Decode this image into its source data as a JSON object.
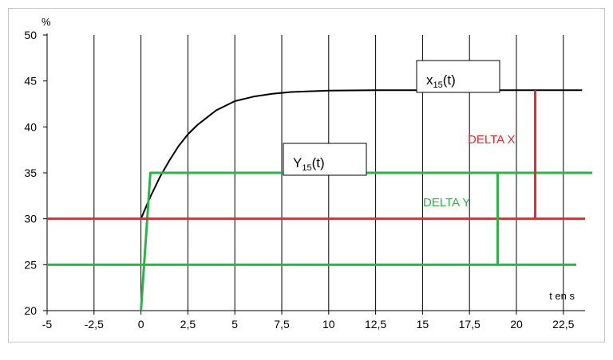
{
  "chart_data": {
    "type": "line",
    "title": "",
    "xlabel": "t en s",
    "ylabel": "%",
    "xlim": [
      -5,
      23.5
    ],
    "ylim": [
      20,
      50
    ],
    "x_ticks": [
      "-5",
      "-2,5",
      "0",
      "2,5",
      "5",
      "7,5",
      "10",
      "12,5",
      "15",
      "17,5",
      "20",
      "22,5"
    ],
    "y_ticks": [
      "20",
      "25",
      "30",
      "35",
      "40",
      "45",
      "50"
    ],
    "grid": "vertical",
    "series": [
      {
        "name": "x15(t)",
        "color": "#000000",
        "points": [
          [
            0,
            30
          ],
          [
            0.5,
            32.4
          ],
          [
            1,
            34.5
          ],
          [
            1.5,
            36.3
          ],
          [
            2,
            37.9
          ],
          [
            2.5,
            39.2
          ],
          [
            3,
            40.2
          ],
          [
            4,
            41.8
          ],
          [
            5,
            42.8
          ],
          [
            6,
            43.3
          ],
          [
            7,
            43.6
          ],
          [
            8,
            43.8
          ],
          [
            10,
            43.95
          ],
          [
            12.5,
            44
          ],
          [
            15,
            44
          ],
          [
            17.5,
            44
          ],
          [
            20,
            44
          ],
          [
            23.5,
            44
          ]
        ]
      },
      {
        "name": "Y15(t)",
        "color": "#2db34a",
        "points": [
          [
            0,
            20
          ],
          [
            0.5,
            35
          ],
          [
            23.5,
            35
          ]
        ]
      }
    ],
    "reference_lines": [
      {
        "y": 30,
        "color": "#e52b2b"
      },
      {
        "y": 25,
        "color": "#2db34a"
      },
      {
        "y": 35,
        "color": "#2db34a"
      }
    ],
    "annotations": [
      {
        "text": "DELTA X",
        "color": "#e52b2b",
        "x": 21,
        "y_from": 30,
        "y_to": 44
      },
      {
        "text": "DELTA Y",
        "color": "#2db34a",
        "x": 19,
        "y_from": 25,
        "y_to": 35
      }
    ],
    "labels": {
      "x_curve": {
        "main": "x",
        "sub": "15",
        "suffix": "(t)"
      },
      "y_curve": {
        "main": "Y",
        "sub": "15",
        "suffix": "(t)"
      }
    }
  }
}
